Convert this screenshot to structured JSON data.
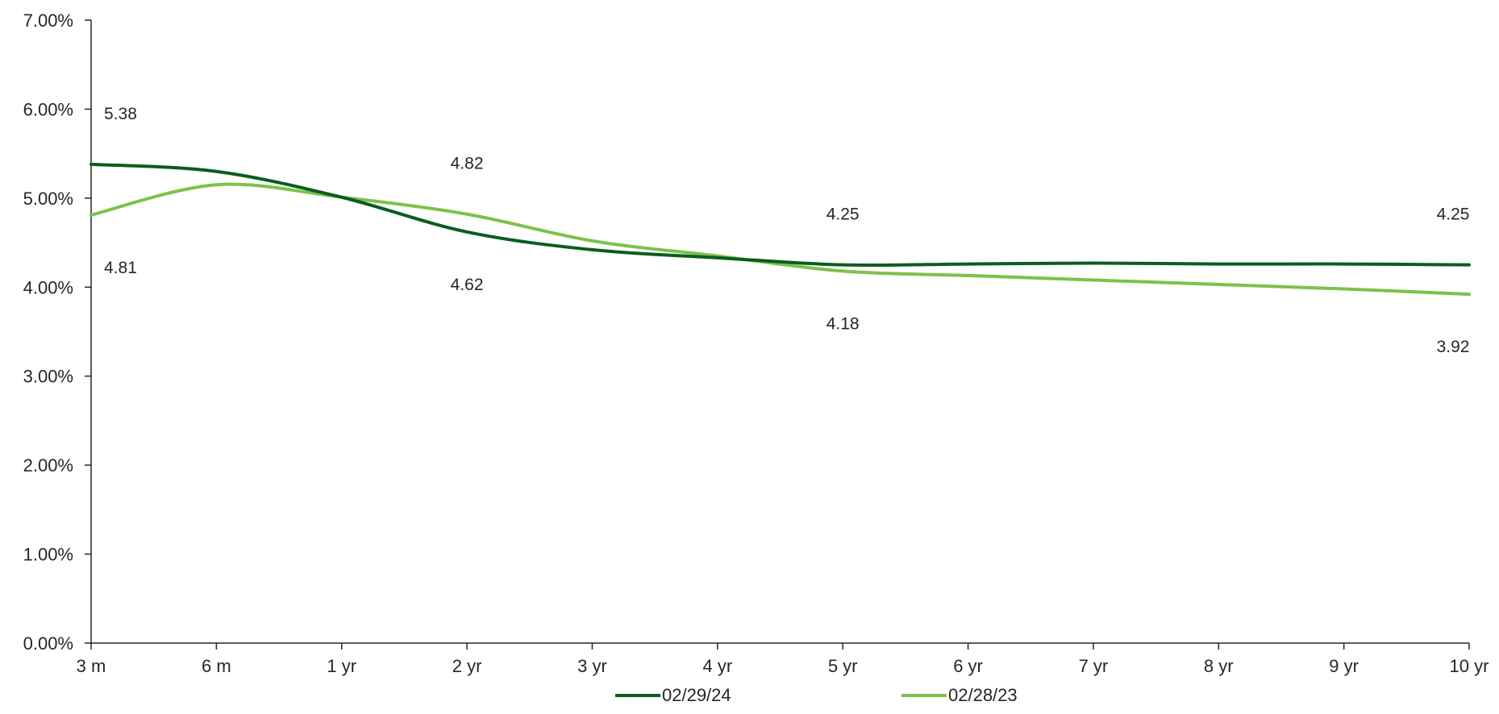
{
  "chart_data": {
    "type": "line",
    "categories": [
      "3 m",
      "6 m",
      "1 yr",
      "2 yr",
      "3 yr",
      "4 yr",
      "5 yr",
      "6 yr",
      "7 yr",
      "8 yr",
      "9 yr",
      "10 yr"
    ],
    "y_ticks": [
      "0.00%",
      "1.00%",
      "2.00%",
      "3.00%",
      "4.00%",
      "5.00%",
      "6.00%",
      "7.00%"
    ],
    "ylim": [
      0,
      7
    ],
    "grid": false,
    "legend_position": "bottom",
    "series": [
      {
        "name": "02/29/24",
        "color": "#0b5d1e",
        "values": [
          5.38,
          5.3,
          5.01,
          4.62,
          4.42,
          4.33,
          4.25,
          4.26,
          4.27,
          4.26,
          4.26,
          4.25
        ],
        "labels": [
          {
            "index": 0,
            "text": "5.38",
            "pos": "above"
          },
          {
            "index": 3,
            "text": "4.62",
            "pos": "below"
          },
          {
            "index": 6,
            "text": "4.25",
            "pos": "above"
          },
          {
            "index": 11,
            "text": "4.25",
            "pos": "above"
          }
        ]
      },
      {
        "name": "02/28/23",
        "color": "#7cc24a",
        "values": [
          4.81,
          5.15,
          5.01,
          4.82,
          4.52,
          4.35,
          4.18,
          4.13,
          4.08,
          4.03,
          3.98,
          3.92
        ],
        "labels": [
          {
            "index": 0,
            "text": "4.81",
            "pos": "below"
          },
          {
            "index": 3,
            "text": "4.82",
            "pos": "above"
          },
          {
            "index": 6,
            "text": "4.18",
            "pos": "below"
          },
          {
            "index": 11,
            "text": "3.92",
            "pos": "below"
          }
        ]
      }
    ]
  }
}
